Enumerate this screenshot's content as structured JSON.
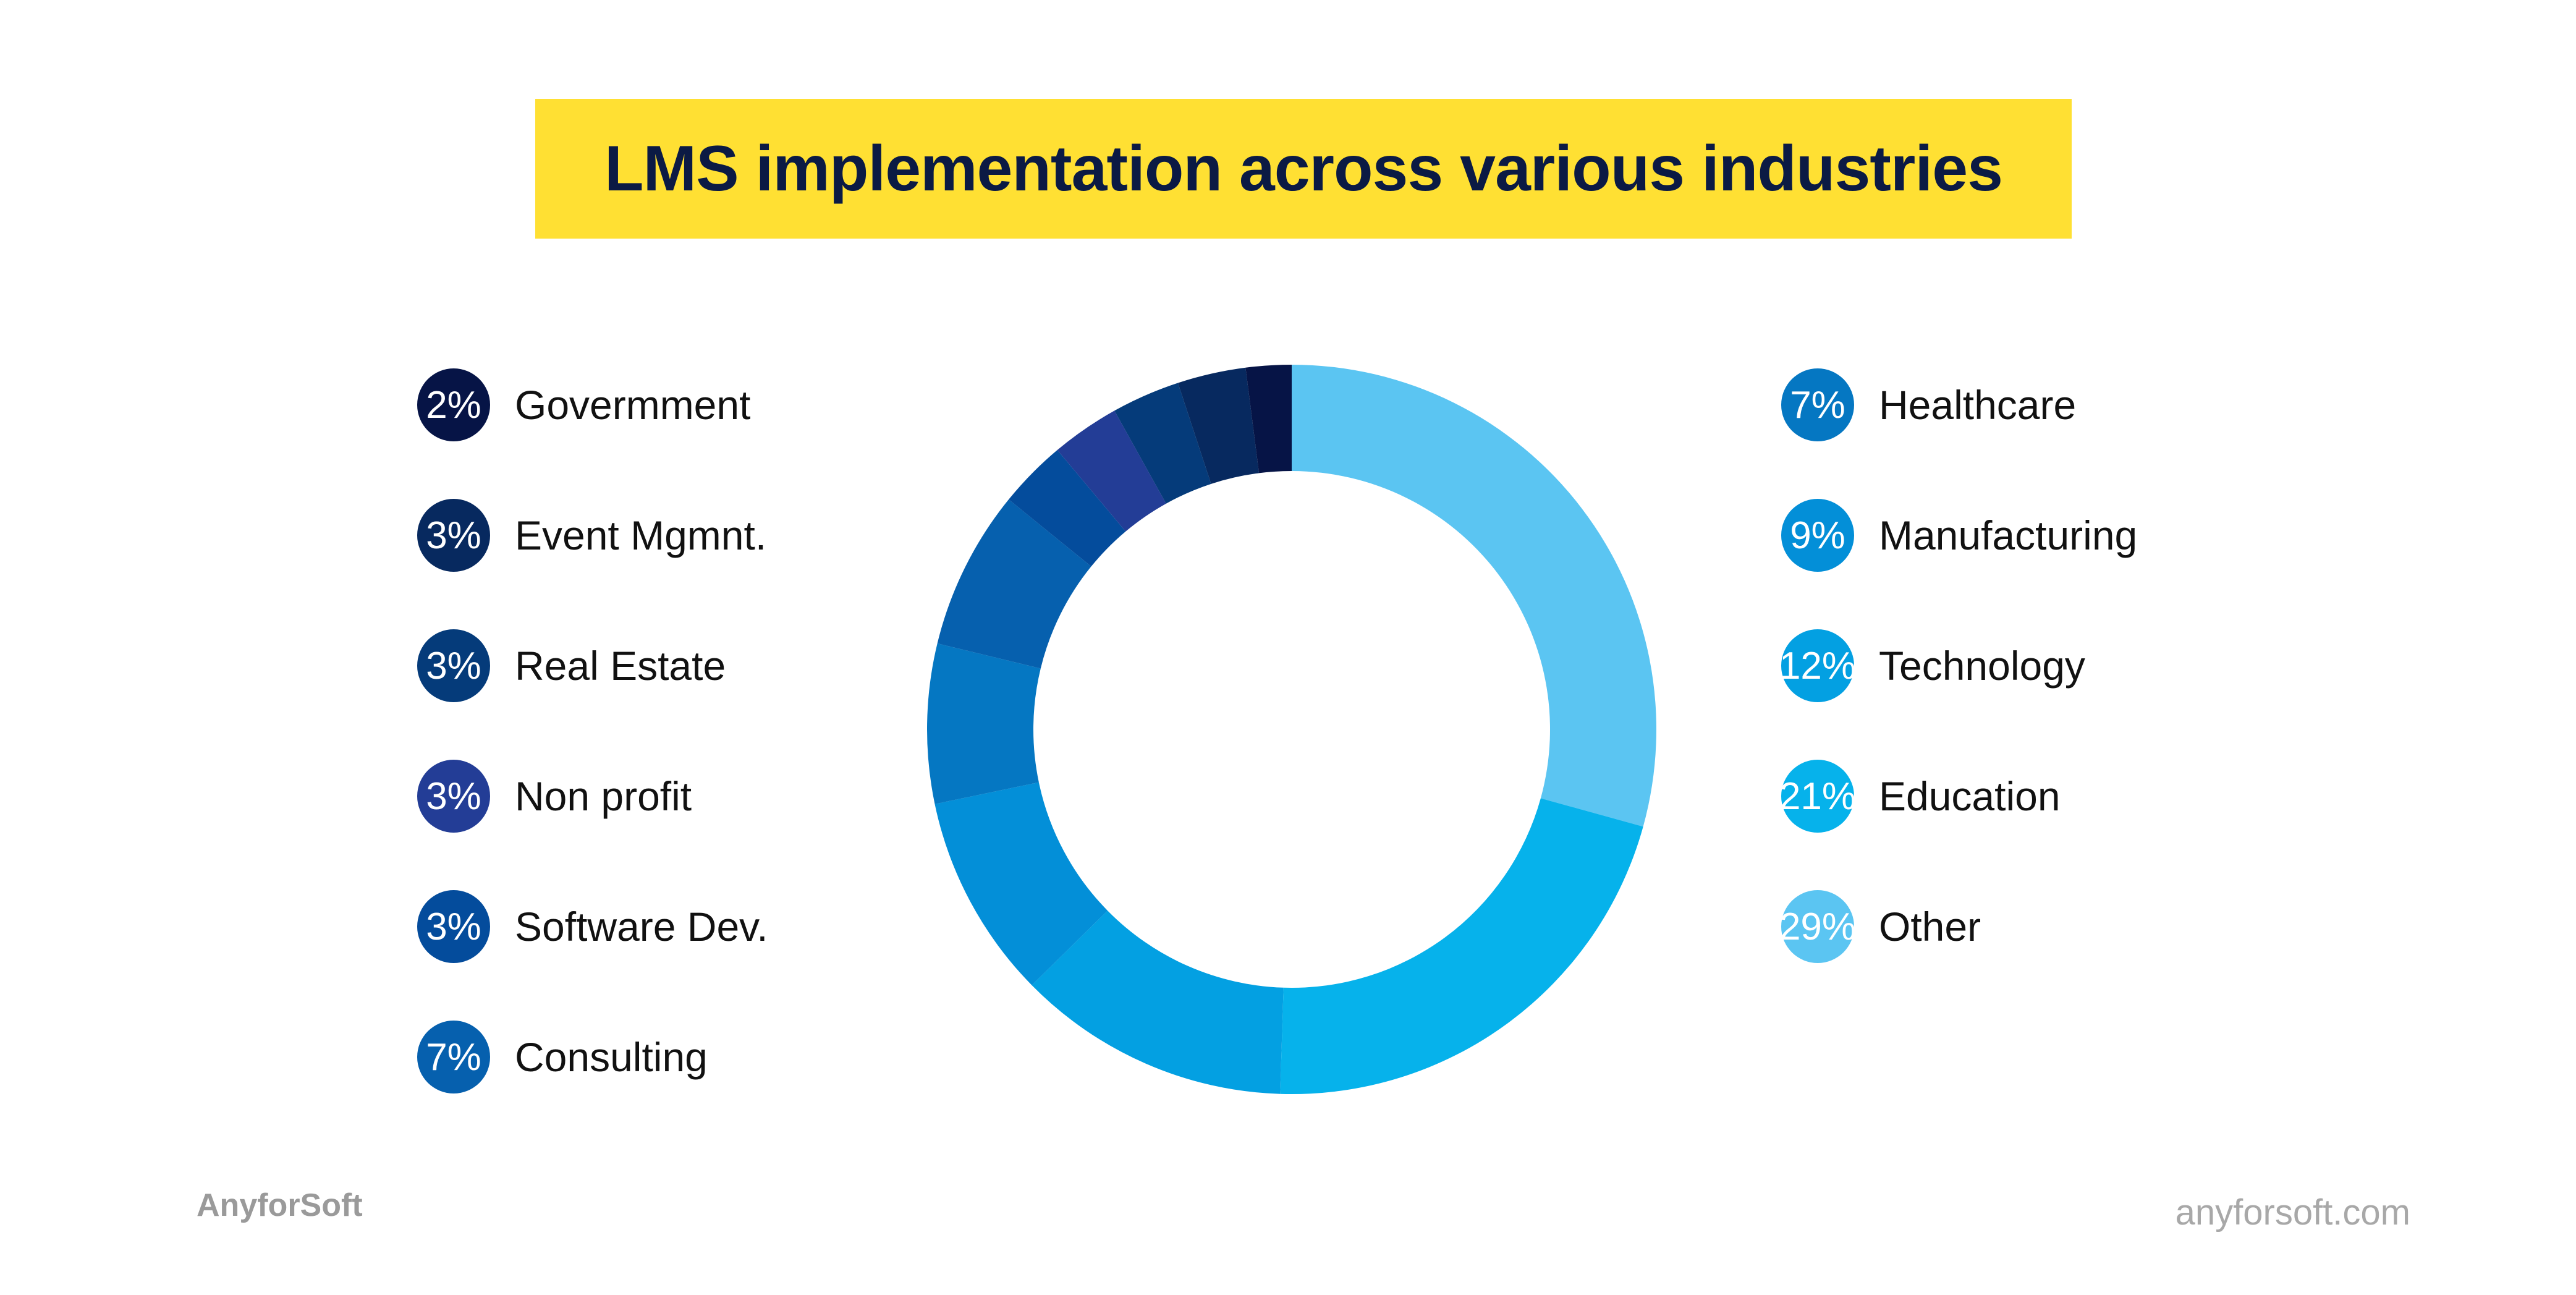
{
  "title": "LMS implementation across various industries",
  "chart_data": {
    "type": "pie",
    "title": "LMS implementation across various industries",
    "donut": true,
    "slices": [
      {
        "label": "Other",
        "value": 29,
        "percent_label": "29%",
        "color": "#5bc5f2"
      },
      {
        "label": "Education",
        "value": 21,
        "percent_label": "21%",
        "color": "#06b2eb"
      },
      {
        "label": "Technology",
        "value": 12,
        "percent_label": "12%",
        "color": "#03a0e2"
      },
      {
        "label": "Manufacturing",
        "value": 9,
        "percent_label": "9%",
        "color": "#038fd8"
      },
      {
        "label": "Healthcare",
        "value": 7,
        "percent_label": "7%",
        "color": "#0577c2"
      },
      {
        "label": "Consulting",
        "value": 7,
        "percent_label": "7%",
        "color": "#0660ae"
      },
      {
        "label": "Software Dev.",
        "value": 3,
        "percent_label": "3%",
        "color": "#044c9c"
      },
      {
        "label": "Non profit",
        "value": 3,
        "percent_label": "3%",
        "color": "#233d96"
      },
      {
        "label": "Real Estate",
        "value": 3,
        "percent_label": "3%",
        "color": "#053b7a"
      },
      {
        "label": "Event Mgmnt.",
        "value": 3,
        "percent_label": "3%",
        "color": "#07295f"
      },
      {
        "label": "Govermment",
        "value": 2,
        "percent_label": "2%",
        "color": "#061446"
      }
    ],
    "legend_placement": "split left and right of chart"
  },
  "legend_left": [
    {
      "pct": "2%",
      "label": "Govermment",
      "color": "#061446"
    },
    {
      "pct": "3%",
      "label": "Event Mgmnt.",
      "color": "#07295f"
    },
    {
      "pct": "3%",
      "label": "Real Estate",
      "color": "#053b7a"
    },
    {
      "pct": "3%",
      "label": "Non profit",
      "color": "#233d96"
    },
    {
      "pct": "3%",
      "label": "Software Dev.",
      "color": "#044c9c"
    },
    {
      "pct": "7%",
      "label": "Consulting",
      "color": "#0660ae"
    }
  ],
  "legend_right": [
    {
      "pct": "7%",
      "label": "Healthcare",
      "color": "#0577c2"
    },
    {
      "pct": "9%",
      "label": "Manufacturing",
      "color": "#038fd8"
    },
    {
      "pct": "12%",
      "label": "Technology",
      "color": "#03a0e2"
    },
    {
      "pct": "21%",
      "label": "Education",
      "color": "#06b2eb"
    },
    {
      "pct": "29%",
      "label": "Other",
      "color": "#5bc5f2"
    }
  ],
  "brand_left": "AnyforSoft",
  "brand_right": "anyforsoft.com"
}
